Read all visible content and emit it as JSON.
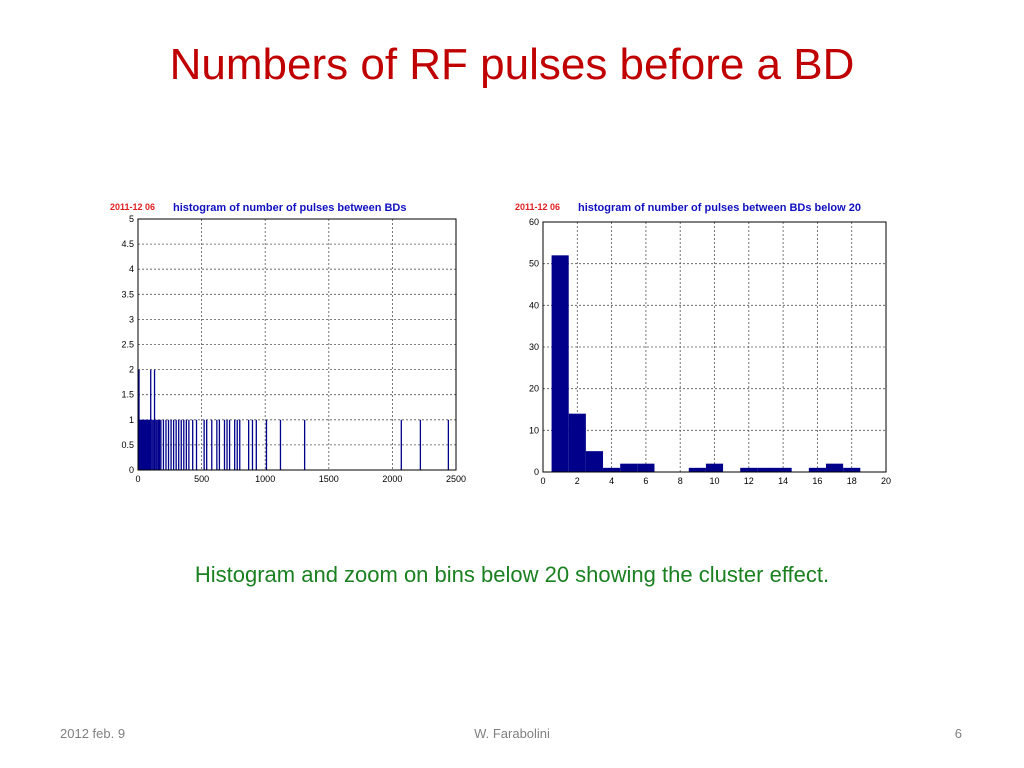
{
  "slide": {
    "title": "Numbers of RF pulses before a BD",
    "caption": "Histogram and zoom on bins below 20 showing the cluster effect.",
    "footer_date": "2012 feb. 9",
    "footer_author": "W. Farabolini",
    "footer_page": "6"
  },
  "colors": {
    "title": "#c00000",
    "caption": "#1a8020",
    "bars": "#00008b",
    "stamp": "#e02020",
    "chart_title": "#1010c0"
  },
  "chart_data": [
    {
      "type": "bar",
      "date_stamp": "2011-12 06",
      "title": "histogram of number of pulses between BDs",
      "xlim": [
        0,
        2500
      ],
      "ylim": [
        0,
        5
      ],
      "xticks": [
        "0",
        "500",
        "1000",
        "1500",
        "2000",
        "2500"
      ],
      "yticks": [
        "0",
        "0.5",
        "1",
        "1.5",
        "2",
        "2.5",
        "3",
        "3.5",
        "4",
        "4.5",
        "5"
      ],
      "grid": true,
      "x": [
        2,
        5,
        8,
        12,
        16,
        20,
        25,
        30,
        35,
        40,
        45,
        50,
        55,
        60,
        65,
        70,
        75,
        80,
        85,
        90,
        95,
        100,
        110,
        120,
        130,
        140,
        150,
        160,
        170,
        180,
        200,
        220,
        240,
        260,
        280,
        300,
        320,
        340,
        360,
        380,
        400,
        430,
        460,
        520,
        540,
        580,
        620,
        640,
        680,
        700,
        720,
        760,
        780,
        800,
        870,
        900,
        930,
        1010,
        1120,
        1310,
        2070,
        2220,
        2440
      ],
      "values": [
        2,
        1,
        2,
        1,
        1,
        1,
        1,
        1,
        1,
        1,
        1,
        1,
        1,
        1,
        1,
        1,
        1,
        1,
        1,
        1,
        1,
        2,
        1,
        1,
        2,
        1,
        1,
        1,
        1,
        1,
        1,
        1,
        1,
        1,
        1,
        1,
        1,
        1,
        1,
        1,
        1,
        1,
        1,
        1,
        1,
        1,
        1,
        1,
        1,
        1,
        1,
        1,
        1,
        1,
        1,
        1,
        1,
        1,
        1,
        1,
        1,
        1,
        1
      ]
    },
    {
      "type": "bar",
      "date_stamp": "2011-12 06",
      "title": "histogram of number of pulses between BDs below 20",
      "xlim": [
        0,
        20
      ],
      "ylim": [
        0,
        60
      ],
      "xticks": [
        "0",
        "2",
        "4",
        "6",
        "8",
        "10",
        "12",
        "14",
        "16",
        "18",
        "20"
      ],
      "yticks": [
        "0",
        "10",
        "20",
        "30",
        "40",
        "50",
        "60"
      ],
      "grid": true,
      "x": [
        1,
        2,
        3,
        4,
        5,
        6,
        7,
        8,
        9,
        10,
        11,
        12,
        13,
        14,
        15,
        16,
        17,
        18,
        19
      ],
      "values": [
        52,
        14,
        5,
        1,
        2,
        2,
        0,
        0,
        1,
        2,
        0,
        1,
        1,
        1,
        0,
        1,
        2,
        1,
        0
      ]
    }
  ]
}
